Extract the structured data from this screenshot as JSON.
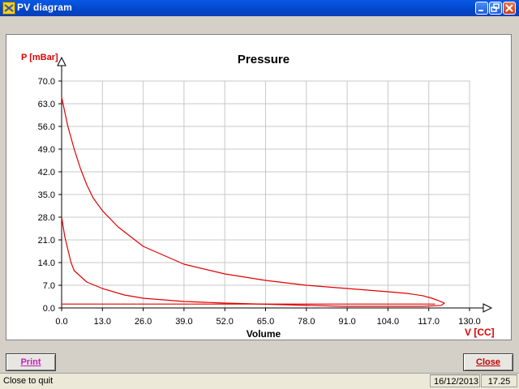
{
  "window": {
    "title": "PV diagram",
    "controls": [
      "minimize-icon",
      "restore-icon",
      "close-icon"
    ]
  },
  "buttons": {
    "print_label": "Print",
    "close_label": "Close"
  },
  "status": {
    "message": "Close to quit",
    "date": "16/12/2013",
    "time": "17.25"
  },
  "colors": {
    "curve": "#e00000",
    "axis_label": "#e00000",
    "grid": "#c8c8c8",
    "print_text": "#c020c0",
    "close_text": "#c00000"
  },
  "chart_data": {
    "type": "line",
    "title": "Pressure",
    "xlabel": "Volume",
    "ylabel": "P [mBar]",
    "xunit_label": "V [CC]",
    "xlim": [
      0,
      130
    ],
    "ylim": [
      0,
      70
    ],
    "x_ticks": [
      "0.0",
      "13.0",
      "26.0",
      "39.0",
      "52.0",
      "65.0",
      "78.0",
      "91.0",
      "104.0",
      "117.0",
      "130.0"
    ],
    "y_ticks": [
      "0.0",
      "7.0",
      "14.0",
      "21.0",
      "28.0",
      "35.0",
      "42.0",
      "49.0",
      "56.0",
      "63.0",
      "70.0"
    ],
    "grid": true,
    "series": [
      {
        "values": [
          [
            0,
            65
          ],
          [
            2,
            56
          ],
          [
            4,
            49
          ],
          [
            6,
            43
          ],
          [
            8,
            38
          ],
          [
            10,
            34
          ],
          [
            13,
            30
          ],
          [
            18,
            25
          ],
          [
            26,
            19
          ],
          [
            39,
            13.5
          ],
          [
            52,
            10.5
          ],
          [
            65,
            8.5
          ],
          [
            78,
            7
          ],
          [
            91,
            6
          ],
          [
            104,
            5
          ],
          [
            110,
            4.5
          ],
          [
            115,
            3.8
          ],
          [
            118,
            3
          ],
          [
            120,
            2.3
          ],
          [
            122,
            1.5
          ],
          [
            121,
            0.8
          ],
          [
            115,
            0.5
          ],
          [
            100,
            0.5
          ],
          [
            90,
            0.5
          ],
          [
            52,
            1.5
          ],
          [
            39,
            2
          ],
          [
            26,
            3
          ],
          [
            20,
            4
          ],
          [
            13,
            6
          ],
          [
            8,
            8
          ],
          [
            4,
            11.5
          ],
          [
            3,
            14
          ],
          [
            2,
            18
          ],
          [
            1,
            22
          ],
          [
            0,
            28
          ]
        ]
      },
      {
        "values": [
          [
            0,
            1.2
          ],
          [
            119,
            1.2
          ]
        ]
      }
    ]
  }
}
